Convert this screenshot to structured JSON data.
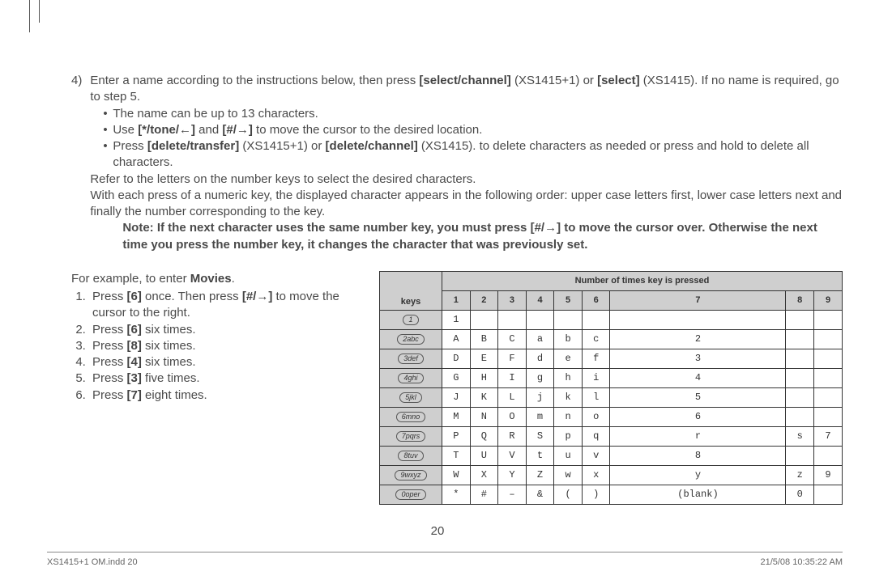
{
  "step4": {
    "num": "4)",
    "line1_a": "Enter a name according to the instructions below, then press ",
    "sel1": "[select/channel]",
    "line1_b": " (XS1415+1) or ",
    "sel2": "[select]",
    "line1_c": " (XS1415). If no name is required, go to step 5.",
    "bullet1": "The name can be up to 13 characters.",
    "bullet2_a": "Use ",
    "b2_k1": "[*/tone/←]",
    "bullet2_b": " and ",
    "b2_k2": "[#/→]",
    "bullet2_c": " to move the cursor to the desired location.",
    "bullet3_a": "Press ",
    "b3_k1": "[delete/transfer]",
    "bullet3_b": " (XS1415+1) or ",
    "b3_k2": "[delete/channel]",
    "bullet3_c": " (XS1415). to delete characters as needed or press and hold to delete all characters.",
    "ref1": "Refer to the letters on the number keys to select the desired characters.",
    "ref2": "With each press of a numeric key, the displayed character appears in the following order: upper case letters first, lower case letters next and finally the number corresponding to the key.",
    "note_a": "Note: If the next character uses the same number key, you must press [#/→] to move the cursor over. Otherwise the next time you press the number key, it changes the character that was previously set."
  },
  "example": {
    "intro_a": "For example, to enter ",
    "intro_b": "Movies",
    "intro_c": ".",
    "s1_a": "Press ",
    "s1_k": "[6]",
    "s1_b": " once. Then press ",
    "s1_k2": "[#/→]",
    "s1_c": " to move the cursor to the right.",
    "s2_a": "Press ",
    "s2_k": "[6]",
    "s2_b": " six times.",
    "s3_a": "Press ",
    "s3_k": "[8]",
    "s3_b": " six times.",
    "s4_a": "Press ",
    "s4_k": "[4]",
    "s4_b": " six times.",
    "s5_a": "Press ",
    "s5_k": "[3]",
    "s5_b": " five times.",
    "s6_a": "Press ",
    "s6_k": "[7]",
    "s6_b": " eight times."
  },
  "table": {
    "header_main": "Number of times key is pressed",
    "header_keys": "keys",
    "cols": [
      "1",
      "2",
      "3",
      "4",
      "5",
      "6",
      "7",
      "8",
      "9"
    ],
    "rows": [
      {
        "key": "1",
        "cells": [
          "1",
          "",
          "",
          "",
          "",
          "",
          "",
          "",
          ""
        ]
      },
      {
        "key": "2abc",
        "cells": [
          "A",
          "B",
          "C",
          "a",
          "b",
          "c",
          "2",
          "",
          ""
        ]
      },
      {
        "key": "3def",
        "cells": [
          "D",
          "E",
          "F",
          "d",
          "e",
          "f",
          "3",
          "",
          ""
        ]
      },
      {
        "key": "4ghi",
        "cells": [
          "G",
          "H",
          "I",
          "g",
          "h",
          "i",
          "4",
          "",
          ""
        ]
      },
      {
        "key": "5jkl",
        "cells": [
          "J",
          "K",
          "L",
          "j",
          "k",
          "l",
          "5",
          "",
          ""
        ]
      },
      {
        "key": "6mno",
        "cells": [
          "M",
          "N",
          "O",
          "m",
          "n",
          "o",
          "6",
          "",
          ""
        ]
      },
      {
        "key": "7pqrs",
        "cells": [
          "P",
          "Q",
          "R",
          "S",
          "p",
          "q",
          "r",
          "s",
          "7"
        ]
      },
      {
        "key": "8tuv",
        "cells": [
          "T",
          "U",
          "V",
          "t",
          "u",
          "v",
          "8",
          "",
          ""
        ]
      },
      {
        "key": "9wxyz",
        "cells": [
          "W",
          "X",
          "Y",
          "Z",
          "w",
          "x",
          "y",
          "z",
          "9"
        ]
      },
      {
        "key": "0oper",
        "cells": [
          "*",
          "#",
          "–",
          "&",
          "(",
          ")",
          "(blank)",
          "0",
          ""
        ]
      }
    ]
  },
  "pagenum": "20",
  "footer": {
    "left": "XS1415+1 OM.indd   20",
    "right": "21/5/08   10:35:22 AM"
  }
}
